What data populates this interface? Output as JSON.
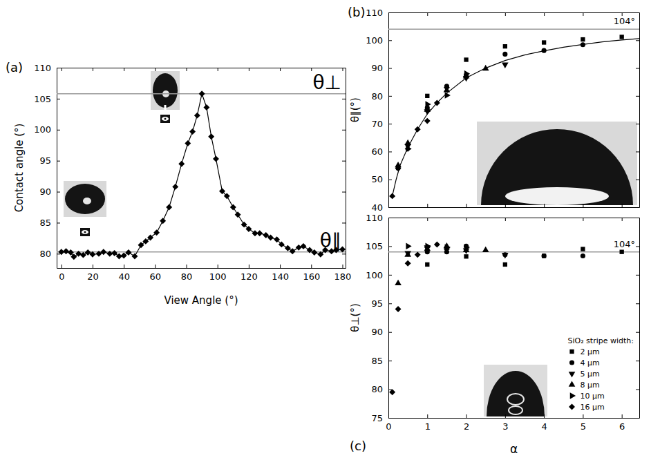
{
  "chart_data": [
    {
      "type": "line",
      "panel_label": "(a)",
      "xlabel": "View Angle (°)",
      "ylabel": "Contact angle (°)",
      "xlim": [
        -3,
        182
      ],
      "ylim": [
        77.7,
        110
      ],
      "xticks": [
        0,
        20,
        40,
        60,
        80,
        100,
        120,
        140,
        160,
        180
      ],
      "yticks": [
        80,
        85,
        90,
        95,
        100,
        105,
        110
      ],
      "series": [
        {
          "x": [
            0,
            3,
            6,
            8,
            11,
            14,
            17,
            20,
            24,
            27,
            31,
            34,
            37,
            40,
            43,
            47,
            51,
            54,
            57,
            61,
            65,
            69,
            73,
            77,
            81,
            84,
            87,
            90,
            93,
            96,
            99,
            103,
            106,
            110,
            113,
            117,
            120,
            124,
            127,
            131,
            134,
            138,
            141,
            145,
            148,
            152,
            155,
            159,
            162,
            166,
            169,
            173,
            176,
            180
          ],
          "values": [
            80.3,
            80.4,
            80.2,
            79.5,
            80,
            79.8,
            80.2,
            79.9,
            80,
            80.3,
            80,
            80.1,
            79.6,
            79.7,
            80.2,
            79.6,
            81.4,
            82,
            82.6,
            83.4,
            85.3,
            87.5,
            90.8,
            94.5,
            97.8,
            99.7,
            102.3,
            105.8,
            103.6,
            98.9,
            95.3,
            90.1,
            89.3,
            87.5,
            86.3,
            84.7,
            84,
            83.3,
            83.3,
            83,
            82.6,
            82.3,
            81.5,
            80.9,
            80.4,
            81,
            81.2,
            80.6,
            80.2,
            79.9,
            80.6,
            80.4,
            80.6,
            80.7
          ],
          "color": "#000000",
          "marker": "diamond",
          "line_style": "solid"
        }
      ],
      "reference_lines": [
        {
          "y": 105.8,
          "label": "θ⊥",
          "color": "#999999"
        },
        {
          "y": 80.3,
          "label": "θ∥",
          "color": "#999999"
        }
      ]
    },
    {
      "type": "scatter",
      "panel_label": "(b)",
      "ylabel": "θ∥(°)",
      "xlim": [
        0,
        6.45
      ],
      "ylim": [
        40,
        110
      ],
      "xticks": [
        0,
        1,
        2,
        3,
        4,
        5,
        6
      ],
      "yticks": [
        40,
        50,
        60,
        70,
        80,
        90,
        100,
        110
      ],
      "tick_labels": "y",
      "series": [
        {
          "x": [
            1,
            2,
            3,
            4,
            5,
            6
          ],
          "values": [
            80,
            93,
            97.8,
            99.2,
            100.3,
            101.2
          ],
          "color": "#000000",
          "marker": "square"
        },
        {
          "x": [
            0.25,
            1,
            1.5,
            2,
            3,
            4,
            5
          ],
          "values": [
            54,
            75.7,
            83.5,
            87.5,
            95,
            96.3,
            98.4
          ],
          "color": "#000000",
          "marker": "circle"
        },
        {
          "x": [
            0.5,
            1,
            2,
            3
          ],
          "values": [
            62,
            74.5,
            86.5,
            91.3
          ],
          "color": "#000000",
          "marker": "triangle-down"
        },
        {
          "x": [
            0.25,
            0.5,
            1,
            1.5,
            2,
            2.5
          ],
          "values": [
            55,
            63,
            75,
            82,
            87,
            89.8
          ],
          "color": "#000000",
          "marker": "triangle-up"
        },
        {
          "x": [
            0.5,
            1,
            1.5,
            2
          ],
          "values": [
            61,
            77,
            80.2,
            88
          ],
          "color": "#000000",
          "marker": "triangle-right"
        },
        {
          "x": [
            0.1,
            0.25,
            0.5,
            0.75,
            1,
            1.25,
            1.5
          ],
          "values": [
            44,
            54,
            61,
            68,
            71,
            77.5,
            83
          ],
          "color": "#000000",
          "marker": "diamond"
        },
        {
          "type": "line",
          "x": [
            0.1,
            0.2,
            0.3,
            0.5,
            0.75,
            1,
            1.25,
            1.5,
            2,
            2.5,
            3,
            3.5,
            4,
            4.5,
            5,
            5.5,
            6,
            6.45
          ],
          "values": [
            44,
            50,
            55,
            61.5,
            68,
            73.5,
            77.5,
            81,
            86.5,
            90,
            92.7,
            94.7,
            96.2,
            97.5,
            98.5,
            99.4,
            100.1,
            100.6
          ],
          "color": "#000000",
          "line_style": "solid"
        }
      ],
      "reference_lines": [
        {
          "y": 104,
          "label": "104°",
          "color": "#999999"
        }
      ]
    },
    {
      "type": "scatter",
      "panel_label": "(c)",
      "xlabel": "α",
      "ylabel": "θ⊥(°)",
      "xlim": [
        0,
        6.45
      ],
      "ylim": [
        75,
        110
      ],
      "xticks": [
        0,
        1,
        2,
        3,
        4,
        5,
        6
      ],
      "yticks": [
        75,
        80,
        85,
        90,
        95,
        100,
        105,
        110
      ],
      "legend": "lower right",
      "legend_title": "SiO₂ stripe width:",
      "series": [
        {
          "name": "2 μm",
          "x": [
            1,
            2,
            3,
            4,
            5,
            6
          ],
          "values": [
            101.8,
            103.2,
            101.8,
            103.3,
            104.5,
            104
          ],
          "color": "#000000",
          "marker": "square"
        },
        {
          "name": "4 μm",
          "x": [
            1,
            1.5,
            2,
            3,
            4,
            5
          ],
          "values": [
            104,
            104,
            105,
            103.5,
            103.3,
            103.3
          ],
          "color": "#000000",
          "marker": "circle"
        },
        {
          "name": "5 μm",
          "x": [
            0.5,
            1,
            2,
            3
          ],
          "values": [
            103.8,
            104.8,
            104.3,
            103.5
          ],
          "color": "#000000",
          "marker": "triangle-down"
        },
        {
          "name": "8 μm",
          "x": [
            0.25,
            0.5,
            1,
            1.5,
            2,
            2.5
          ],
          "values": [
            98.5,
            103.5,
            104.5,
            105,
            104.3,
            104.3
          ],
          "color": "#000000",
          "marker": "triangle-up"
        },
        {
          "name": "10 μm",
          "x": [
            0.5,
            1,
            1.5,
            2
          ],
          "values": [
            105,
            105,
            104.8,
            104.8
          ],
          "color": "#000000",
          "marker": "triangle-right"
        },
        {
          "name": "16 μm",
          "x": [
            0.1,
            0.25,
            0.5,
            0.75,
            1,
            1.25,
            1.5
          ],
          "values": [
            79.5,
            94,
            102,
            103.5,
            104.8,
            105.3,
            104.5
          ],
          "color": "#000000",
          "marker": "diamond"
        }
      ],
      "reference_lines": [
        {
          "y": 104,
          "label": "104°",
          "color": "#999999"
        }
      ]
    }
  ]
}
